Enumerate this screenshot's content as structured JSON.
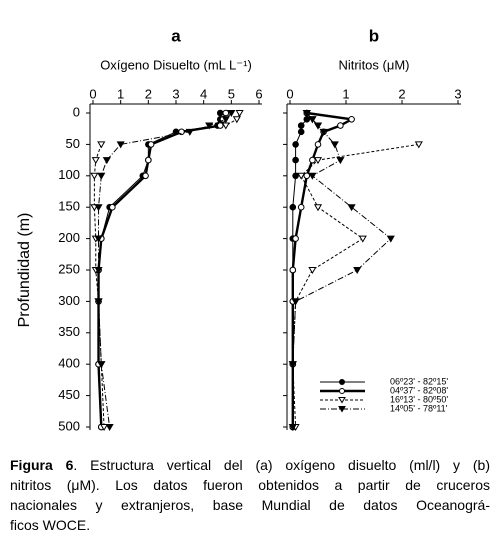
{
  "chart_data": [
    {
      "type": "line",
      "panel": "a",
      "title": "Oxígeno Disuelto (mL L⁻¹)",
      "ylabel": "Profundidad (m)",
      "y": [
        0,
        10,
        20,
        30,
        50,
        75,
        100,
        150,
        200,
        250,
        300,
        400,
        500
      ],
      "xlim": [
        0,
        6
      ],
      "xticks": [
        0,
        1,
        2,
        3,
        4,
        5,
        6
      ],
      "ylim": [
        0,
        500
      ],
      "yticks": [
        0,
        50,
        100,
        150,
        200,
        250,
        300,
        350,
        400,
        450,
        500
      ],
      "y_inverted": true,
      "series": [
        {
          "marker": "filled-circle",
          "dash": "solid",
          "values": [
            4.6,
            4.6,
            4.5,
            3.0,
            2.0,
            2.0,
            1.8,
            0.6,
            0.3,
            0.2,
            0.2,
            0.2,
            0.3
          ]
        },
        {
          "marker": "open-circle",
          "dash": "thick",
          "values": [
            4.8,
            4.7,
            4.6,
            3.2,
            2.1,
            2.0,
            1.9,
            0.7,
            0.3,
            0.2,
            0.2,
            0.2,
            0.3
          ]
        },
        {
          "marker": "open-triangle",
          "dash": "dashed",
          "values": [
            5.3,
            5.2,
            4.8,
            null,
            0.3,
            0.1,
            0.05,
            0.05,
            0.1,
            0.1,
            0.2,
            0.3,
            0.4
          ]
        },
        {
          "marker": "filled-triangle",
          "dash": "dashdot",
          "values": [
            5.0,
            4.8,
            4.2,
            3.5,
            1.0,
            0.5,
            0.3,
            0.2,
            0.2,
            0.2,
            0.2,
            0.3,
            0.6
          ]
        }
      ]
    },
    {
      "type": "line",
      "panel": "b",
      "title": "Nitritos  (μM)",
      "y": [
        0,
        10,
        20,
        30,
        50,
        75,
        100,
        150,
        200,
        250,
        300,
        400,
        500
      ],
      "xlim": [
        0,
        3
      ],
      "xticks": [
        0,
        1,
        2,
        3
      ],
      "ylim": [
        0,
        500
      ],
      "yticks": [
        0,
        50,
        100,
        150,
        200,
        250,
        300,
        350,
        400,
        450,
        500
      ],
      "y_inverted": true,
      "legend": "lower right",
      "series": [
        {
          "name": "06º23' - 82º15'",
          "marker": "filled-circle",
          "dash": "solid",
          "values": [
            0.3,
            0.3,
            0.2,
            0.2,
            0.1,
            0.1,
            0.1,
            0.05,
            0.05,
            0.05,
            0.05,
            0.05,
            0.05
          ]
        },
        {
          "name": "04º37' - 82º08'",
          "marker": "open-circle",
          "dash": "thick",
          "values": [
            0.3,
            1.1,
            0.9,
            0.6,
            0.5,
            0.4,
            0.3,
            0.2,
            0.1,
            0.05,
            0.05,
            0.05,
            0.05
          ]
        },
        {
          "name": "16º13' - 80º50'",
          "marker": "open-triangle",
          "dash": "dashed",
          "values": [
            0.3,
            0.4,
            0.5,
            null,
            2.3,
            0.5,
            0.2,
            0.5,
            1.3,
            0.4,
            0.1,
            0.05,
            0.1
          ]
        },
        {
          "name": "14º05' - 78º11'",
          "marker": "filled-triangle",
          "dash": "dashdot",
          "values": [
            0.3,
            0.4,
            0.5,
            0.6,
            0.8,
            0.9,
            0.4,
            1.1,
            1.8,
            1.2,
            0.1,
            0.05,
            0.05
          ]
        }
      ]
    }
  ],
  "caption": {
    "label": "Figura 6",
    "lines": [
      ". Estructura vertical del (a) oxígeno disuelto (ml/l) y (b)",
      "nitritos (μM). Los datos fueron obtenidos a partir de cruceros",
      "nacionales y extranjeros, base Mundial de datos Oceanográ-",
      "ficos WOCE."
    ]
  }
}
